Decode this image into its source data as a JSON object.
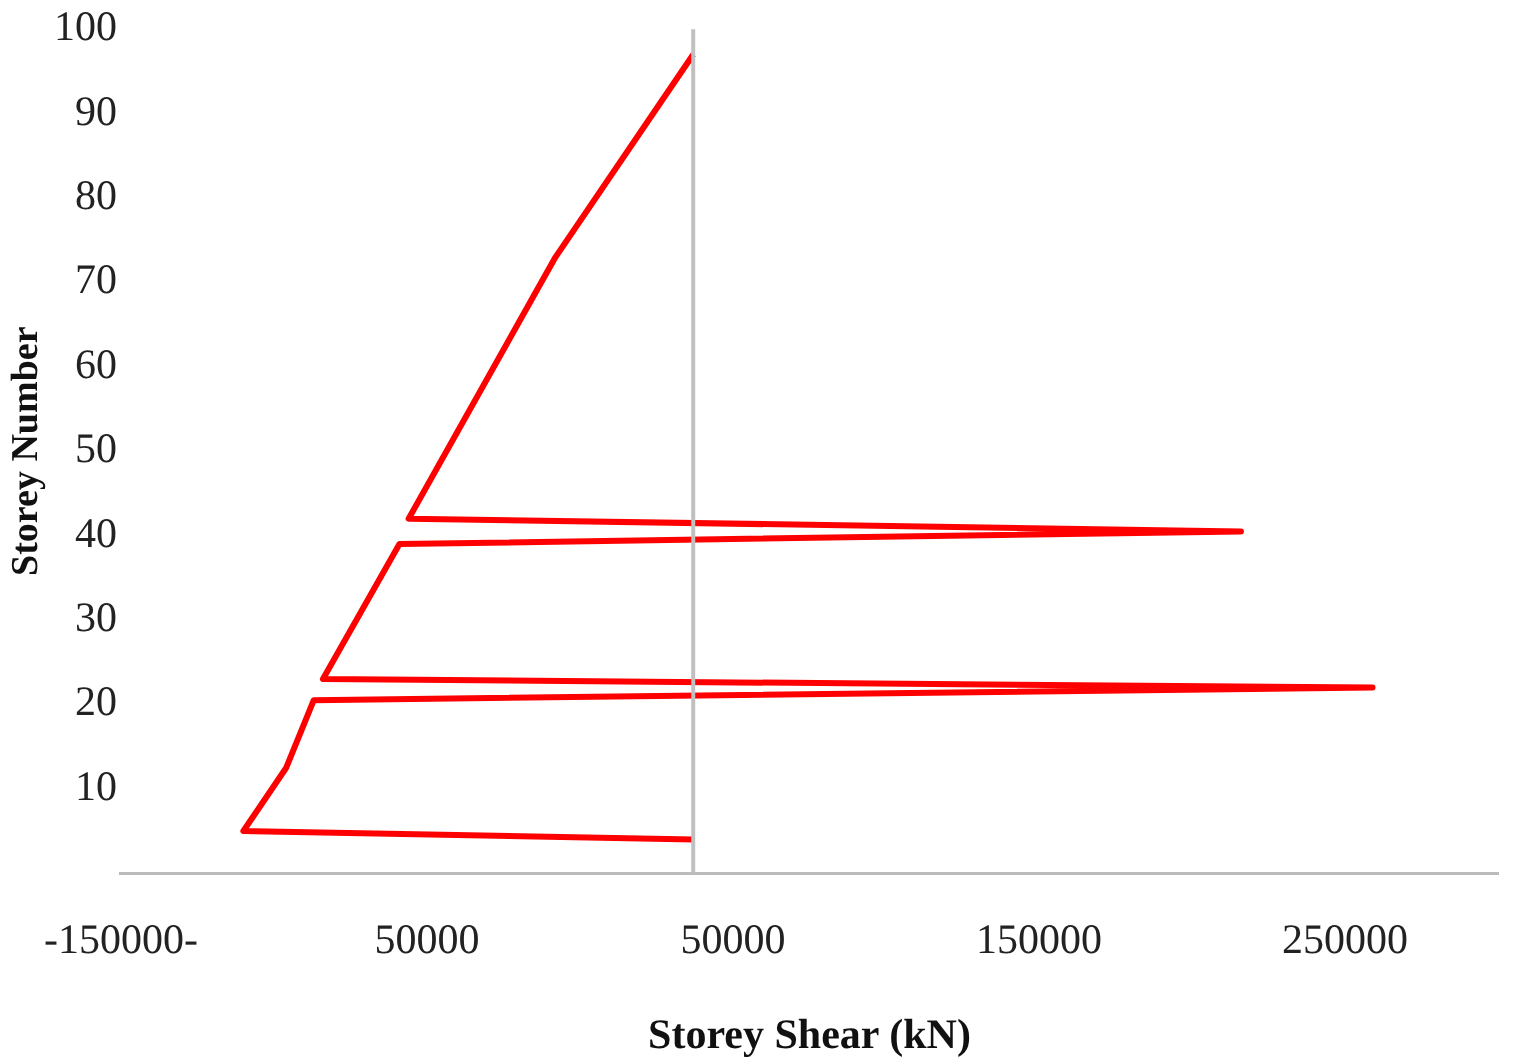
{
  "chart_data": {
    "type": "line",
    "xlabel": "Storey Shear (kN)",
    "ylabel": "Storey Number",
    "x": [
      37000,
      -8000,
      -56000,
      216000,
      -59000,
      -84000,
      259000,
      -87000,
      -96000,
      -110000,
      37000
    ],
    "series": [
      {
        "color": "#ff0000",
        "values": [
          97,
          73,
          42,
          40.5,
          39,
          23,
          22,
          20.5,
          12.5,
          5,
          4
        ]
      }
    ],
    "xlim": [
      -150000,
      300000
    ],
    "xticks": [
      {
        "value": -150000,
        "label": "-150000-"
      },
      {
        "value": -50000,
        "label": "50000"
      },
      50000,
      150000,
      250000
    ],
    "ylim": [
      0,
      100
    ],
    "yticks": [
      10,
      20,
      30,
      40,
      50,
      60,
      70,
      80,
      90,
      100
    ],
    "ref_lines": [
      {
        "axis": "x",
        "value": 37000,
        "color": "#c0c0c0"
      }
    ],
    "grid": false,
    "legend": false,
    "marker": "none",
    "line_style": "solid"
  }
}
